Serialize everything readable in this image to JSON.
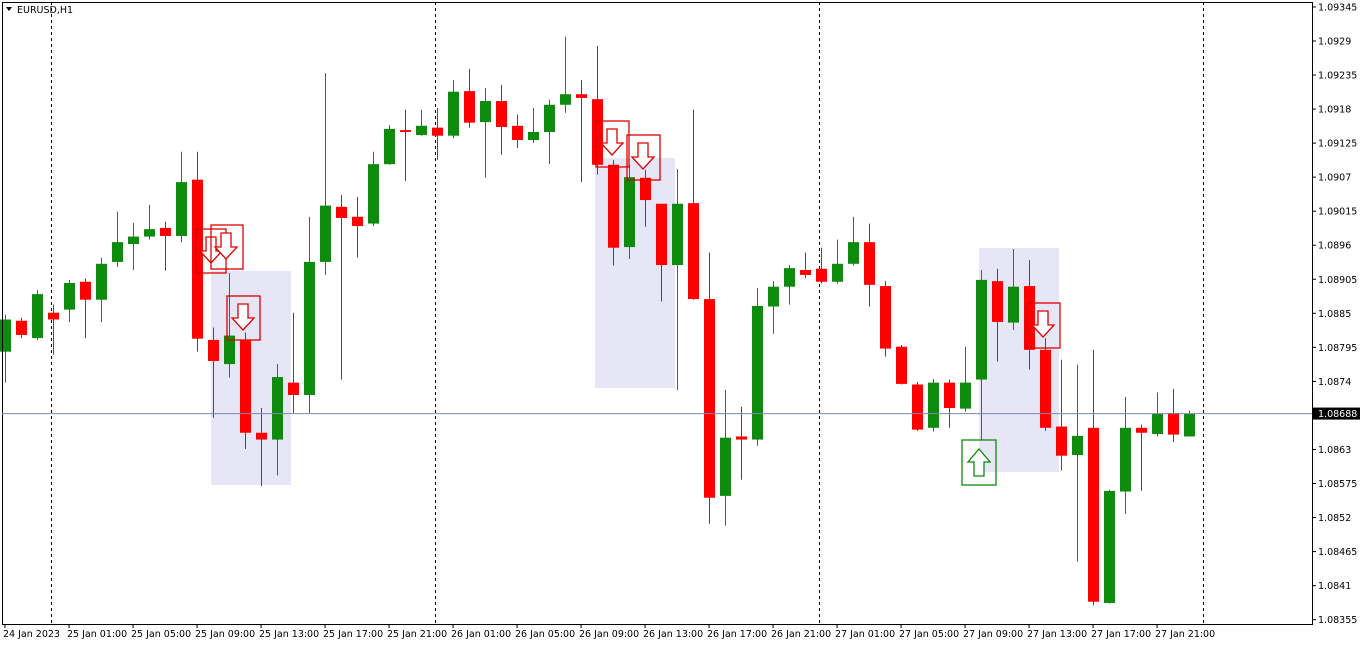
{
  "chart_data": {
    "type": "candlestick",
    "title": "EURUSD,H1",
    "categories": [
      "24 Jan 2023",
      null,
      null,
      null,
      "25 Jan 01:00",
      null,
      null,
      null,
      "25 Jan 05:00",
      null,
      null,
      null,
      "25 Jan 09:00",
      null,
      null,
      null,
      "25 Jan 13:00",
      null,
      null,
      null,
      "25 Jan 17:00",
      null,
      null,
      null,
      "25 Jan 21:00",
      null,
      null,
      null,
      "26 Jan 01:00",
      null,
      null,
      null,
      "26 Jan 05:00",
      null,
      null,
      null,
      "26 Jan 09:00",
      null,
      null,
      null,
      "26 Jan 13:00",
      null,
      null,
      null,
      "26 Jan 17:00",
      null,
      null,
      null,
      "26 Jan 21:00",
      null,
      null,
      null,
      "27 Jan 01:00",
      null,
      null,
      null,
      "27 Jan 05:00",
      null,
      null,
      null,
      "27 Jan 09:00",
      null,
      null,
      null,
      "27 Jan 13:00",
      null,
      null,
      null,
      "27 Jan 17:00",
      null,
      null,
      null,
      "27 Jan 21:00",
      null,
      null
    ],
    "open": [
      1.08788,
      1.08838,
      1.0881,
      1.08851,
      1.08856,
      1.08901,
      1.08872,
      1.08933,
      1.08962,
      1.08974,
      1.08988,
      1.08975,
      1.09066,
      1.08807,
      1.08768,
      1.08807,
      1.08657,
      1.08646,
      1.08738,
      1.08718,
      1.08933,
      1.09022,
      1.09006,
      1.08995,
      1.09091,
      1.09146,
      1.09138,
      1.0915,
      1.09137,
      1.09209,
      1.09159,
      1.09193,
      1.09153,
      1.0913,
      1.09143,
      1.09187,
      1.09204,
      1.09196,
      1.0909,
      1.08957,
      1.09069,
      1.09027,
      1.08928,
      1.09028,
      1.08873,
      1.08555,
      1.08651,
      1.08646,
      1.08861,
      1.08893,
      1.0892,
      1.08922,
      1.08901,
      1.0893,
      1.08965,
      1.08894,
      1.08796,
      1.08735,
      1.08665,
      1.08738,
      1.08696,
      1.08743,
      1.08902,
      1.08835,
      1.08894,
      1.08791,
      1.08667,
      1.08621,
      1.08665,
      1.08382,
      1.08562,
      1.08665,
      1.08655,
      1.08689,
      1.08651
    ],
    "high": [
      1.08848,
      1.08843,
      1.08888,
      1.08864,
      1.08904,
      1.08906,
      1.0894,
      1.09014,
      1.08996,
      1.09025,
      1.08998,
      1.09111,
      1.09111,
      1.08827,
      1.08915,
      1.08819,
      1.08697,
      1.08768,
      1.08851,
      1.09006,
      1.09238,
      1.09041,
      1.09038,
      1.09111,
      1.09154,
      1.09179,
      1.09179,
      1.09182,
      1.09227,
      1.09245,
      1.09214,
      1.09219,
      1.09171,
      1.09182,
      1.09195,
      1.09297,
      1.09227,
      1.09282,
      1.09098,
      1.0909,
      1.09082,
      1.09027,
      1.09083,
      1.09179,
      1.08948,
      1.08726,
      1.08699,
      1.08891,
      1.08902,
      1.08928,
      1.08948,
      1.08956,
      1.08969,
      1.09006,
      1.08995,
      1.08902,
      1.08799,
      1.08739,
      1.08744,
      1.08743,
      1.08796,
      1.0892,
      1.08922,
      1.08954,
      1.08936,
      1.0881,
      1.08775,
      1.08767,
      1.08791,
      1.08565,
      1.08715,
      1.0867,
      1.08722,
      1.08728,
      1.08693
    ],
    "low": [
      1.08738,
      1.0881,
      1.08807,
      1.08783,
      1.08836,
      1.0881,
      1.08836,
      1.08925,
      1.0892,
      1.08969,
      1.08919,
      1.08965,
      1.08788,
      1.08681,
      1.08746,
      1.08631,
      1.08571,
      1.08588,
      1.08689,
      1.08689,
      1.08912,
      1.08743,
      1.0894,
      1.08991,
      1.0909,
      1.09064,
      1.09137,
      1.09098,
      1.09133,
      1.0915,
      1.09069,
      1.09106,
      1.09117,
      1.09125,
      1.09091,
      1.09174,
      1.09062,
      1.09074,
      1.08927,
      1.08938,
      1.0899,
      1.08869,
      1.08726,
      1.08872,
      1.0851,
      1.08507,
      1.08581,
      1.08636,
      1.08817,
      1.08864,
      1.08907,
      1.08898,
      1.08898,
      1.08927,
      1.08861,
      1.0878,
      1.08735,
      1.0866,
      1.08659,
      1.08665,
      1.08691,
      1.08646,
      1.08772,
      1.08823,
      1.08759,
      1.0866,
      1.08596,
      1.08449,
      1.08378,
      1.08381,
      1.08526,
      1.08563,
      1.08651,
      1.08642,
      1.08651
    ],
    "close": [
      1.0884,
      1.08815,
      1.08881,
      1.0884,
      1.08899,
      1.08872,
      1.0893,
      1.08965,
      1.08974,
      1.08986,
      1.08975,
      1.09062,
      1.08809,
      1.08773,
      1.08814,
      1.08657,
      1.08646,
      1.08747,
      1.08718,
      1.08933,
      1.09024,
      1.09004,
      1.08991,
      1.09091,
      1.09148,
      1.09143,
      1.09153,
      1.09137,
      1.09208,
      1.09158,
      1.09193,
      1.09151,
      1.0913,
      1.09143,
      1.09187,
      1.09204,
      1.09198,
      1.0909,
      1.08956,
      1.0907,
      1.09033,
      1.08928,
      1.09027,
      1.08873,
      1.08552,
      1.08649,
      1.08646,
      1.08862,
      1.08893,
      1.08923,
      1.08912,
      1.08901,
      1.0893,
      1.08965,
      1.08896,
      1.08793,
      1.08736,
      1.08662,
      1.08738,
      1.08697,
      1.08738,
      1.08904,
      1.08836,
      1.08893,
      1.08791,
      1.08665,
      1.0862,
      1.08652,
      1.08384,
      1.08563,
      1.08665,
      1.08657,
      1.08688,
      1.08654,
      1.08688
    ],
    "up_color": "#0e8a0e",
    "down_color": "#ff0000",
    "current_price": 1.08688,
    "ylim": [
      1.08348,
      1.09353
    ],
    "yticks": [
      1.08355,
      1.0841,
      1.08465,
      1.0852,
      1.08575,
      1.0863,
      1.08685,
      1.0874,
      1.08795,
      1.0885,
      1.08905,
      1.0896,
      1.09015,
      1.0907,
      1.09125,
      1.0918,
      1.09235,
      1.0929,
      1.09345
    ]
  }
}
